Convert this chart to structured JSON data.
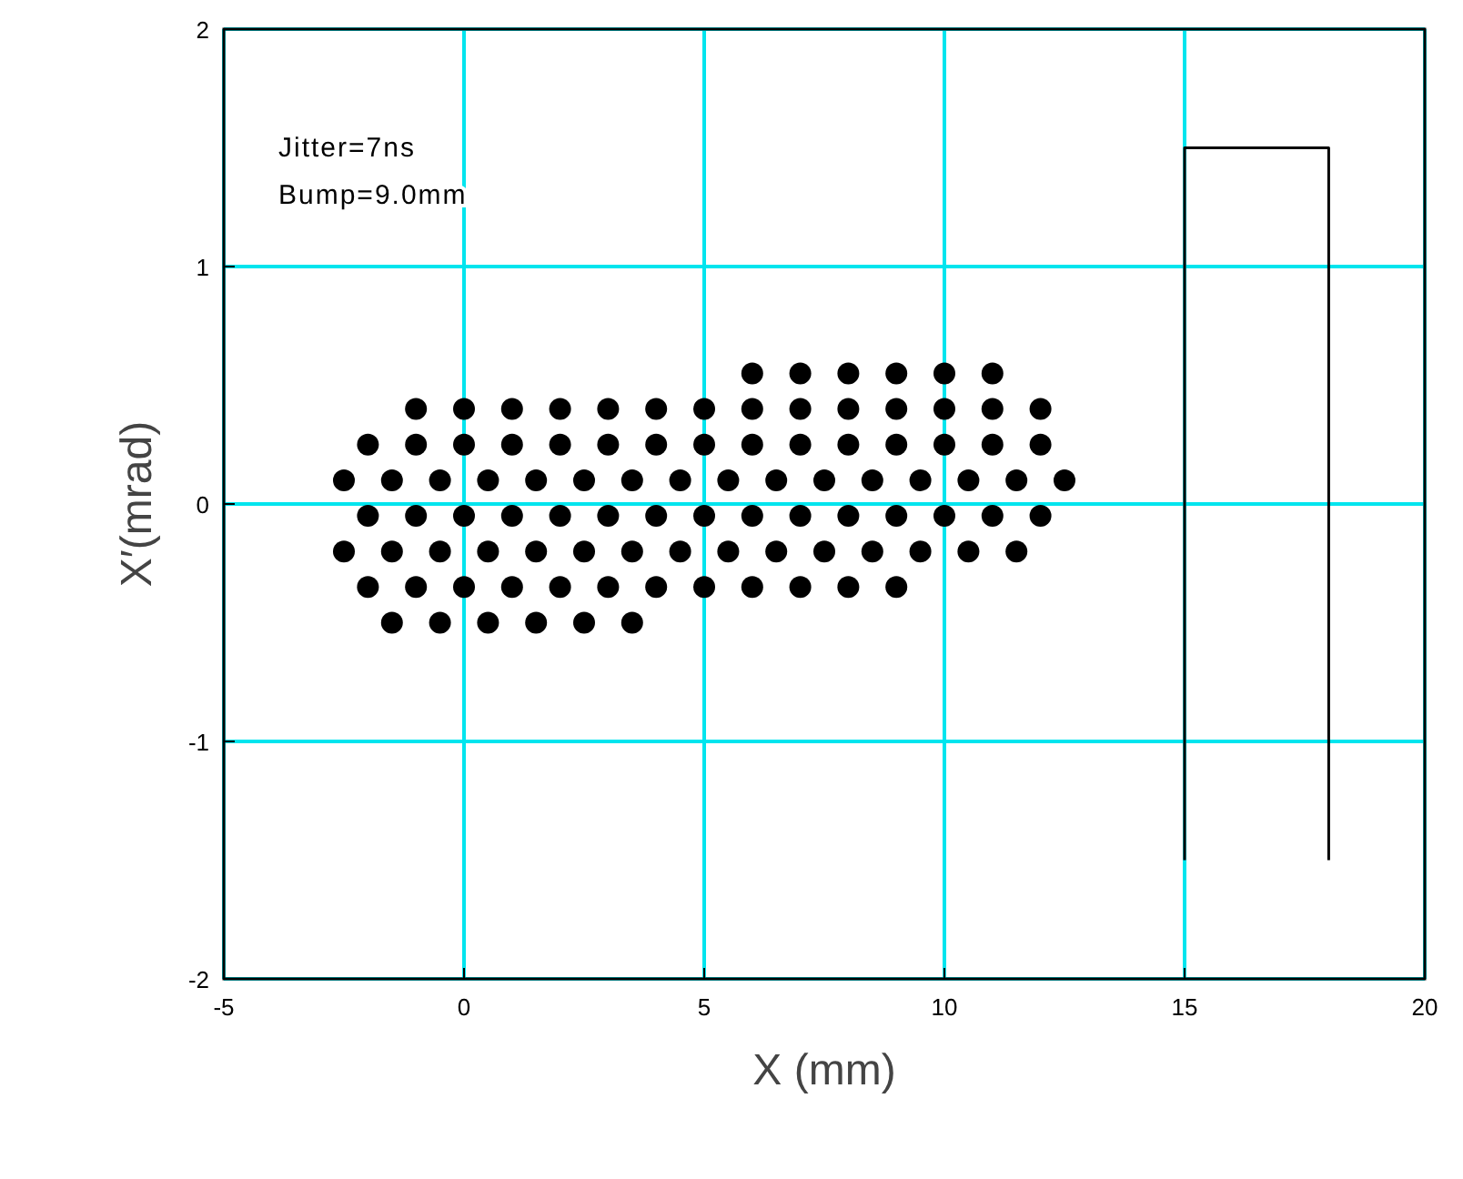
{
  "chart_data": {
    "type": "scatter",
    "xlabel": "X (mm)",
    "ylabel": "X′(mrad)",
    "annotations": [
      "Jitter=7ns",
      "Bump=9.0mm"
    ],
    "xlim": [
      -5,
      20
    ],
    "xticks": [
      -5,
      0,
      5,
      10,
      15,
      20
    ],
    "ylim": [
      -2,
      2
    ],
    "yticks": [
      -2,
      -1,
      0,
      1,
      2
    ],
    "grid": true,
    "series": [
      {
        "marker": "circle",
        "color": "#000000",
        "x": [
          6,
          7,
          8,
          9,
          10,
          11,
          -1,
          0,
          1,
          2,
          3,
          4,
          5,
          6,
          7,
          8,
          9,
          10,
          11,
          12,
          -2,
          -1,
          0,
          1,
          2,
          3,
          4,
          5,
          6,
          7,
          8,
          9,
          10,
          11,
          12,
          -2.5,
          -1.5,
          -0.5,
          0.5,
          1.5,
          2.5,
          3.5,
          4.5,
          5.5,
          6.5,
          7.5,
          8.5,
          9.5,
          10.5,
          11.5,
          12.5,
          -2,
          -1,
          0,
          1,
          2,
          3,
          4,
          5,
          6,
          7,
          8,
          9,
          10,
          11,
          12,
          -2.5,
          -1.5,
          -0.5,
          0.5,
          1.5,
          2.5,
          3.5,
          4.5,
          5.5,
          6.5,
          7.5,
          8.5,
          9.5,
          10.5,
          11.5,
          -2,
          -1,
          0,
          1,
          2,
          3,
          4,
          5,
          6,
          7,
          8,
          9,
          -1.5,
          -0.5,
          0.5,
          1.5,
          2.5,
          3.5
        ],
        "values": [
          0.55,
          0.55,
          0.55,
          0.55,
          0.55,
          0.55,
          0.4,
          0.4,
          0.4,
          0.4,
          0.4,
          0.4,
          0.4,
          0.4,
          0.4,
          0.4,
          0.4,
          0.4,
          0.4,
          0.4,
          0.25,
          0.25,
          0.25,
          0.25,
          0.25,
          0.25,
          0.25,
          0.25,
          0.25,
          0.25,
          0.25,
          0.25,
          0.25,
          0.25,
          0.25,
          0.1,
          0.1,
          0.1,
          0.1,
          0.1,
          0.1,
          0.1,
          0.1,
          0.1,
          0.1,
          0.1,
          0.1,
          0.1,
          0.1,
          0.1,
          0.1,
          -0.05,
          -0.05,
          -0.05,
          -0.05,
          -0.05,
          -0.05,
          -0.05,
          -0.05,
          -0.05,
          -0.05,
          -0.05,
          -0.05,
          -0.05,
          -0.05,
          -0.05,
          -0.2,
          -0.2,
          -0.2,
          -0.2,
          -0.2,
          -0.2,
          -0.2,
          -0.2,
          -0.2,
          -0.2,
          -0.2,
          -0.2,
          -0.2,
          -0.2,
          -0.2,
          -0.35,
          -0.35,
          -0.35,
          -0.35,
          -0.35,
          -0.35,
          -0.35,
          -0.35,
          -0.35,
          -0.35,
          -0.35,
          -0.35,
          -0.5,
          -0.5,
          -0.5,
          -0.5,
          -0.5,
          -0.5
        ]
      },
      {
        "type": "line",
        "marker": "none",
        "color": "#000000",
        "x": [
          15,
          15,
          18,
          18
        ],
        "values": [
          -1.5,
          1.5,
          1.5,
          -1.5
        ]
      }
    ]
  }
}
